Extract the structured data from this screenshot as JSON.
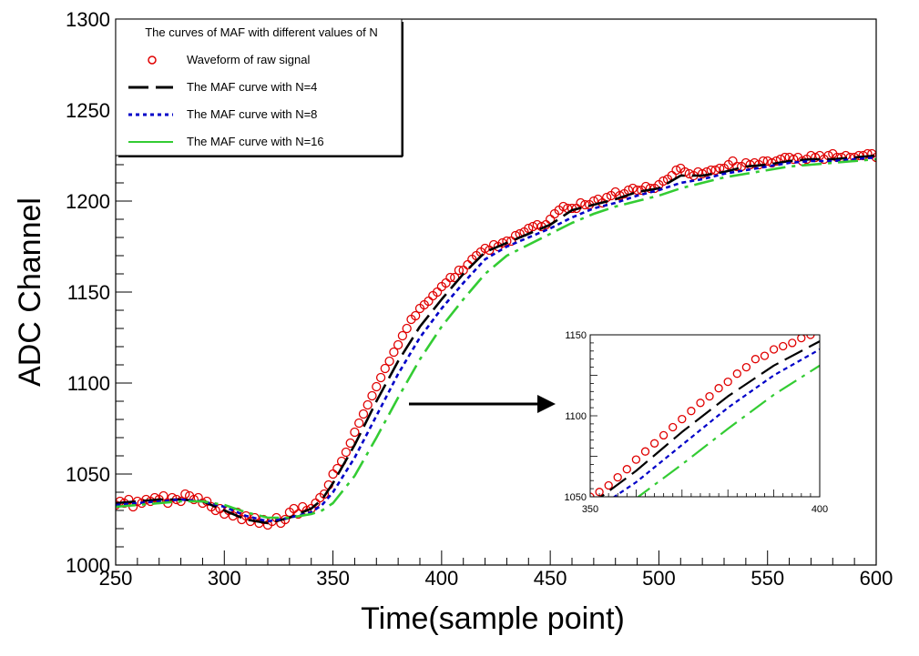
{
  "chart_data": {
    "type": "line",
    "xlabel": "Time(sample point)",
    "ylabel": "ADC Channel",
    "xlim": [
      250,
      600
    ],
    "ylim": [
      1000,
      1300
    ],
    "x_ticks": [
      "250",
      "300",
      "350",
      "400",
      "450",
      "500",
      "550",
      "600"
    ],
    "y_ticks": [
      "1000",
      "1050",
      "1100",
      "1150",
      "1200",
      "1250",
      "1300"
    ],
    "legend": {
      "title": "The curves of MAF with different values of N",
      "position": "top-left"
    },
    "series": [
      {
        "name": "Waveform of raw signal",
        "style": "markers",
        "color": "#e00000",
        "x": [
          250,
          252,
          254,
          256,
          258,
          260,
          262,
          264,
          266,
          268,
          270,
          272,
          274,
          276,
          278,
          280,
          282,
          284,
          286,
          288,
          290,
          292,
          294,
          296,
          298,
          300,
          302,
          304,
          306,
          308,
          310,
          312,
          314,
          316,
          318,
          320,
          322,
          324,
          326,
          328,
          330,
          332,
          334,
          336,
          338,
          340,
          342,
          344,
          346,
          348,
          350,
          352,
          354,
          356,
          358,
          360,
          362,
          364,
          366,
          368,
          370,
          372,
          374,
          376,
          378,
          380,
          382,
          384,
          386,
          388,
          390,
          392,
          394,
          396,
          398,
          400,
          402,
          404,
          406,
          408,
          410,
          412,
          414,
          416,
          418,
          420,
          422,
          424,
          426,
          428,
          430,
          432,
          434,
          436,
          438,
          440,
          442,
          444,
          446,
          448,
          450,
          452,
          454,
          456,
          458,
          460,
          462,
          464,
          466,
          468,
          470,
          472,
          474,
          476,
          478,
          480,
          482,
          484,
          486,
          488,
          490,
          492,
          494,
          496,
          498,
          500,
          502,
          504,
          506,
          508,
          510,
          512,
          514,
          516,
          518,
          520,
          522,
          524,
          526,
          528,
          530,
          532,
          534,
          536,
          538,
          540,
          542,
          544,
          546,
          548,
          550,
          552,
          554,
          556,
          558,
          560,
          562,
          564,
          566,
          568,
          570,
          572,
          574,
          576,
          578,
          580,
          582,
          584,
          586,
          588,
          590,
          592,
          594,
          596,
          598,
          600
        ],
        "y": [
          1033,
          1035,
          1034,
          1036,
          1032,
          1035,
          1034,
          1036,
          1035,
          1037,
          1036,
          1038,
          1034,
          1037,
          1036,
          1035,
          1039,
          1038,
          1036,
          1037,
          1034,
          1035,
          1032,
          1030,
          1031,
          1028,
          1030,
          1027,
          1029,
          1025,
          1027,
          1024,
          1026,
          1023,
          1025,
          1022,
          1024,
          1026,
          1023,
          1025,
          1029,
          1031,
          1028,
          1032,
          1030,
          1031,
          1034,
          1037,
          1039,
          1044,
          1050,
          1053,
          1057,
          1062,
          1067,
          1073,
          1078,
          1083,
          1088,
          1093,
          1098,
          1103,
          1108,
          1112,
          1117,
          1121,
          1126,
          1130,
          1135,
          1137,
          1141,
          1143,
          1145,
          1148,
          1150,
          1153,
          1155,
          1158,
          1158,
          1162,
          1162,
          1165,
          1168,
          1170,
          1172,
          1174,
          1173,
          1176,
          1175,
          1177,
          1178,
          1178,
          1181,
          1182,
          1183,
          1185,
          1186,
          1187,
          1186,
          1187,
          1190,
          1193,
          1195,
          1197,
          1196,
          1196,
          1196,
          1199,
          1198,
          1198,
          1200,
          1201,
          1199,
          1202,
          1203,
          1205,
          1203,
          1204,
          1206,
          1207,
          1206,
          1206,
          1208,
          1207,
          1207,
          1209,
          1211,
          1212,
          1214,
          1217,
          1218,
          1216,
          1215,
          1214,
          1216,
          1215,
          1216,
          1217,
          1217,
          1218,
          1218,
          1220,
          1222,
          1219,
          1219,
          1221,
          1220,
          1221,
          1220,
          1222,
          1222,
          1221,
          1222,
          1223,
          1224,
          1224,
          1223,
          1224,
          1222,
          1223,
          1225,
          1224,
          1225,
          1223,
          1225,
          1226,
          1224,
          1224,
          1225,
          1224,
          1224,
          1225,
          1225,
          1226,
          1226,
          1224
        ]
      },
      {
        "name": "The MAF curve with N=4",
        "style": "long-dash",
        "color": "#000000",
        "x": [
          250,
          260,
          270,
          280,
          290,
          300,
          310,
          320,
          330,
          340,
          345,
          350,
          360,
          370,
          380,
          390,
          400,
          410,
          420,
          430,
          440,
          450,
          460,
          470,
          480,
          490,
          500,
          510,
          520,
          530,
          540,
          550,
          560,
          570,
          580,
          590,
          600
        ],
        "y": [
          1034,
          1035,
          1036,
          1036,
          1035,
          1030,
          1025,
          1023,
          1026,
          1031,
          1036,
          1045,
          1066,
          1090,
          1112,
          1131,
          1146,
          1160,
          1172,
          1177,
          1182,
          1187,
          1195,
          1198,
          1201,
          1205,
          1207,
          1214,
          1214,
          1216,
          1219,
          1220,
          1222,
          1223,
          1223,
          1224,
          1225
        ]
      },
      {
        "name": "The MAF curve with N=8",
        "style": "dotted",
        "color": "#0000c8",
        "x": [
          250,
          260,
          270,
          280,
          290,
          300,
          310,
          320,
          330,
          340,
          345,
          350,
          360,
          370,
          380,
          390,
          400,
          410,
          420,
          430,
          440,
          450,
          460,
          470,
          480,
          490,
          500,
          510,
          520,
          530,
          540,
          550,
          560,
          570,
          580,
          590,
          600
        ],
        "y": [
          1033,
          1034,
          1035,
          1036,
          1035,
          1032,
          1027,
          1024,
          1026,
          1029,
          1033,
          1040,
          1059,
          1082,
          1105,
          1125,
          1141,
          1155,
          1168,
          1175,
          1180,
          1185,
          1191,
          1196,
          1199,
          1203,
          1206,
          1210,
          1212,
          1215,
          1217,
          1219,
          1221,
          1222,
          1222,
          1223,
          1224
        ]
      },
      {
        "name": "The MAF curve with N=16",
        "style": "dash-dot",
        "color": "#33cc33",
        "x": [
          250,
          260,
          270,
          280,
          290,
          300,
          310,
          320,
          330,
          340,
          345,
          350,
          360,
          370,
          380,
          390,
          400,
          410,
          420,
          430,
          440,
          450,
          460,
          470,
          480,
          490,
          500,
          510,
          520,
          530,
          540,
          550,
          560,
          570,
          580,
          590,
          600
        ],
        "y": [
          1032,
          1033,
          1034,
          1035,
          1035,
          1033,
          1029,
          1026,
          1026,
          1028,
          1030,
          1034,
          1049,
          1070,
          1092,
          1113,
          1131,
          1146,
          1160,
          1170,
          1176,
          1182,
          1188,
          1193,
          1197,
          1200,
          1203,
          1207,
          1210,
          1213,
          1215,
          1217,
          1219,
          1220,
          1221,
          1222,
          1223
        ]
      }
    ],
    "inset": {
      "xlim": [
        350,
        400
      ],
      "ylim": [
        1050,
        1150
      ],
      "x_ticks": [
        "350",
        "400"
      ],
      "y_ticks": [
        "1050",
        "1100",
        "1150"
      ]
    }
  }
}
